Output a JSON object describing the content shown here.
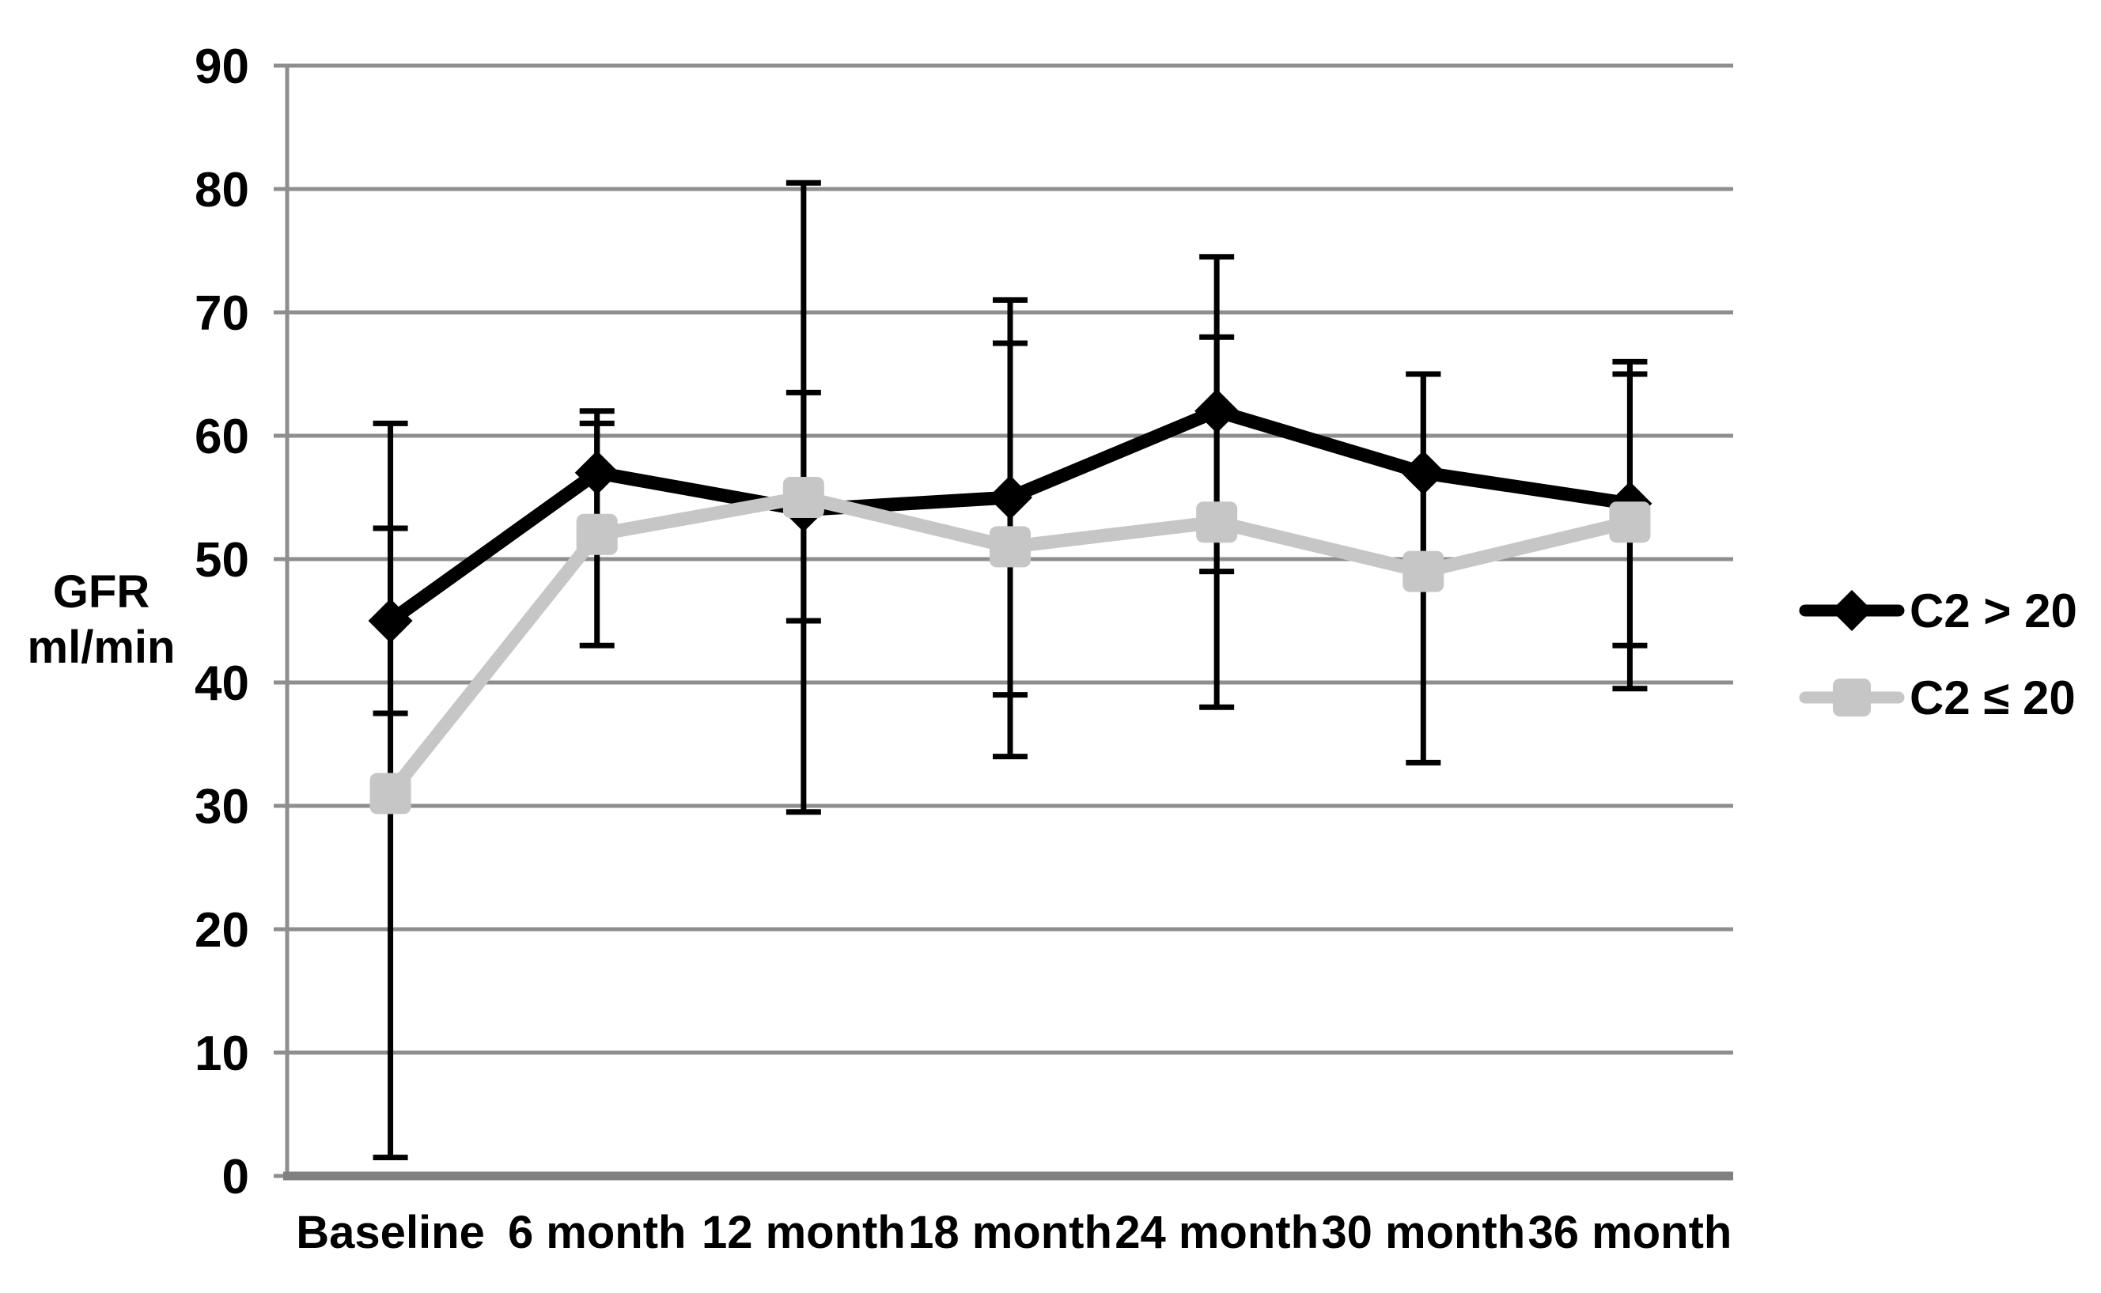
{
  "chart_data": {
    "type": "line",
    "title": "",
    "ylabel_lines": [
      "GFR",
      "ml/min"
    ],
    "xlabel": "",
    "categories": [
      "Baseline",
      "6 month",
      "12 month",
      "18 month",
      "24 month",
      "30 month",
      "36 month"
    ],
    "y_axis": {
      "min": 0,
      "max": 90,
      "step": 10,
      "tick_labels": [
        "0",
        "10",
        "20",
        "30",
        "40",
        "50",
        "60",
        "70",
        "80",
        "90"
      ]
    },
    "grid": true,
    "legend_position": "right",
    "series": [
      {
        "name": "C2 > 20",
        "color": "#000000",
        "error_bar_color": "#000000",
        "marker": "diamond",
        "values": [
          45,
          57,
          54,
          55,
          62,
          57,
          54.5
        ],
        "error_low": [
          37.5,
          52,
          45,
          39,
          49,
          49,
          43
        ],
        "error_high": [
          52.5,
          62,
          63.5,
          71,
          74.5,
          65,
          66
        ]
      },
      {
        "name": "C2 ≤ 20",
        "color": "#c6c6c6",
        "error_bar_color": "#000000",
        "marker": "square",
        "values": [
          31,
          52,
          55,
          51,
          53,
          49,
          53
        ],
        "error_low": [
          1.5,
          43,
          29.5,
          34,
          38,
          33.5,
          39.5
        ],
        "error_high": [
          61,
          61,
          80.5,
          67.5,
          68,
          65,
          65
        ]
      }
    ],
    "colors": {
      "background": "#ffffff",
      "gridline": "#8e8e8e",
      "y_axis_line": "#8e8e8e",
      "x_axis_line": "#808080",
      "series_black": "#000000",
      "series_gray": "#c6c6c6"
    }
  }
}
